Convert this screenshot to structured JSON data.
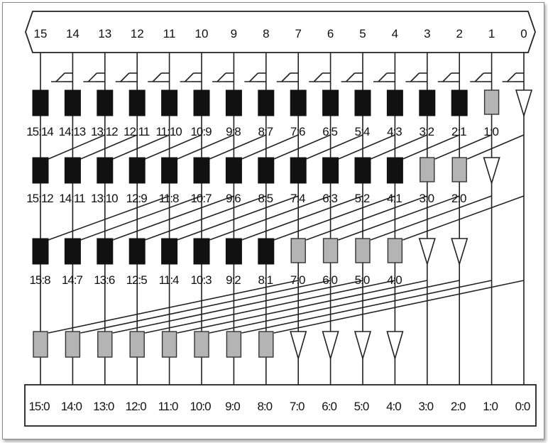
{
  "inputs": [
    "15",
    "14",
    "13",
    "12",
    "11",
    "10",
    "9",
    "8",
    "7",
    "6",
    "5",
    "4",
    "3",
    "2",
    "1",
    "0"
  ],
  "rows": [
    {
      "cells": [
        "black",
        "black",
        "black",
        "black",
        "black",
        "black",
        "black",
        "black",
        "black",
        "black",
        "black",
        "black",
        "black",
        "black",
        "gray",
        "buffer"
      ],
      "labels": [
        "15:14",
        "14:13",
        "13:12",
        "12:11",
        "11:10",
        "10:9",
        "9:8",
        "8:7",
        "7:6",
        "6:5",
        "5:4",
        "4:3",
        "3:2",
        "2:1",
        "1:0",
        ""
      ]
    },
    {
      "cells": [
        "black",
        "black",
        "black",
        "black",
        "black",
        "black",
        "black",
        "black",
        "black",
        "black",
        "black",
        "black",
        "gray",
        "gray",
        "buffer",
        "none"
      ],
      "labels": [
        "15:12",
        "14:11",
        "13:10",
        "12:9",
        "11:8",
        "10:7",
        "9:6",
        "8:5",
        "7:4",
        "6:3",
        "5:2",
        "4:1",
        "3:0",
        "2:0",
        "",
        ""
      ]
    },
    {
      "cells": [
        "black",
        "black",
        "black",
        "black",
        "black",
        "black",
        "black",
        "black",
        "gray",
        "gray",
        "gray",
        "gray",
        "buffer",
        "buffer",
        "none",
        "none"
      ],
      "labels": [
        "15:8",
        "14:7",
        "13:6",
        "12:5",
        "11:4",
        "10:3",
        "9:2",
        "8:1",
        "7:0",
        "6:0",
        "5:0",
        "4:0",
        "",
        "",
        "",
        ""
      ]
    },
    {
      "cells": [
        "gray",
        "gray",
        "gray",
        "gray",
        "gray",
        "gray",
        "gray",
        "gray",
        "buffer",
        "buffer",
        "buffer",
        "buffer",
        "none",
        "none",
        "none",
        "none"
      ],
      "labels": [
        "",
        "",
        "",
        "",
        "",
        "",
        "",
        "",
        "",
        "",
        "",
        "",
        "",
        "",
        "",
        ""
      ]
    }
  ],
  "outputs": [
    "15:0",
    "14:0",
    "13:0",
    "12:0",
    "11:0",
    "10:0",
    "9:0",
    "8:0",
    "7:0",
    "6:0",
    "5:0",
    "4:0",
    "3:0",
    "2:0",
    "1:0",
    "0:0"
  ],
  "colors": {
    "black_cell": "#111111",
    "gray_cell": "#b4b4b4",
    "line": "#222222"
  }
}
